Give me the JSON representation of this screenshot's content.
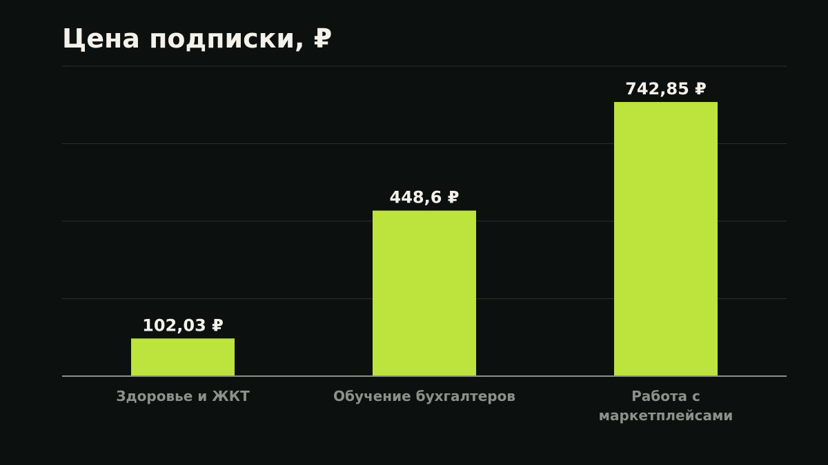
{
  "chart_data": {
    "type": "bar",
    "title": "Цена подписки, ₽",
    "categories": [
      [
        "Здоровье и ЖКТ"
      ],
      [
        "Обучение бухгалтеров"
      ],
      [
        "Работа с",
        "маркетплейсами"
      ]
    ],
    "values": [
      102.03,
      448.6,
      742.85
    ],
    "value_labels": [
      "102,03 ₽",
      "448,6 ₽",
      "742,85 ₽"
    ],
    "ylim": [
      0,
      840
    ],
    "grid": true,
    "xlabel": "",
    "ylabel": ""
  },
  "colors": {
    "background": "#0c100e",
    "bar": "#bde43c",
    "grid": "#2c302d",
    "axis": "#8d918c",
    "title": "#f4f1ea",
    "value_label": "#f4f1ea",
    "category_label": "#8d918c"
  }
}
